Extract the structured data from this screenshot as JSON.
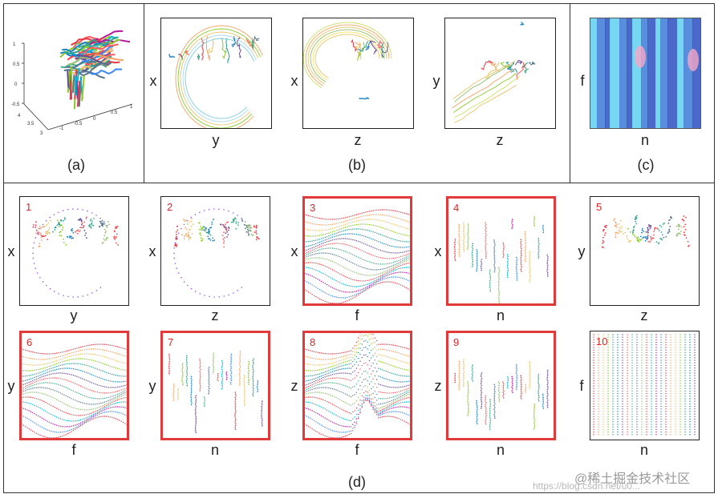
{
  "captions": {
    "a": "(a)",
    "b": "(b)",
    "c": "(c)",
    "d": "(d)"
  },
  "panel_a": {
    "ticks_vertical": [
      "1",
      "0.5",
      "0",
      "-0.5"
    ],
    "ticks_left": [
      "4",
      "3.5",
      "3"
    ],
    "ticks_right": [
      "-1",
      "-0.5",
      "0",
      "0.5",
      "1"
    ]
  },
  "panel_b": [
    {
      "ylabel": "x",
      "xlabel": "y"
    },
    {
      "ylabel": "x",
      "xlabel": "z"
    },
    {
      "ylabel": "y",
      "xlabel": "z"
    }
  ],
  "panel_c": {
    "ylabel": "f",
    "xlabel": "n"
  },
  "grid_d": [
    {
      "num": "1",
      "ylabel": "x",
      "xlabel": "y",
      "highlight": false
    },
    {
      "num": "2",
      "ylabel": "x",
      "xlabel": "z",
      "highlight": false
    },
    {
      "num": "3",
      "ylabel": "x",
      "xlabel": "f",
      "highlight": true
    },
    {
      "num": "4",
      "ylabel": "x",
      "xlabel": "n",
      "highlight": true
    },
    {
      "num": "5",
      "ylabel": "y",
      "xlabel": "z",
      "highlight": false
    },
    {
      "num": "6",
      "ylabel": "y",
      "xlabel": "f",
      "highlight": true
    },
    {
      "num": "7",
      "ylabel": "y",
      "xlabel": "n",
      "highlight": true
    },
    {
      "num": "8",
      "ylabel": "z",
      "xlabel": "f",
      "highlight": true
    },
    {
      "num": "9",
      "ylabel": "z",
      "xlabel": "n",
      "highlight": true
    },
    {
      "num": "10",
      "ylabel": "f",
      "xlabel": "n",
      "highlight": false
    }
  ],
  "watermark": {
    "line1": "@稀土掘金技术社区",
    "line2": "https://blog.csdn.net/u0..."
  },
  "colors": {
    "highlight_border": "#e03a3a",
    "panel_number": "#d62828",
    "heatmap_base": "#2b4fbf",
    "heatmap_light": "#5fd0f0"
  }
}
